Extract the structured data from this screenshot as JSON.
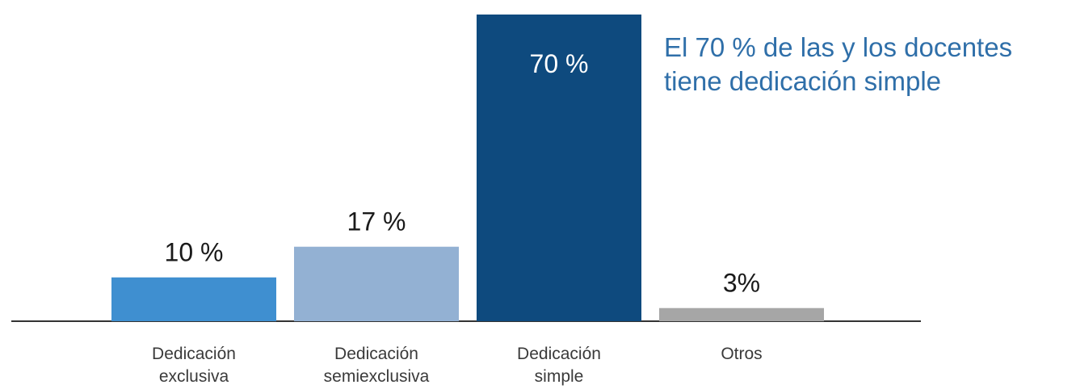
{
  "chart_data": {
    "type": "bar",
    "title": "",
    "xlabel": "",
    "ylabel": "",
    "ylim": [
      0,
      70
    ],
    "grid": false,
    "categories": [
      "Dedicación\nexclusiva",
      "Dedicación\nsemiexclusiva",
      "Dedicación\nsimple",
      "Otros"
    ],
    "values": [
      10,
      17,
      70,
      3
    ],
    "value_labels": [
      "10 %",
      "17 %",
      "70 %",
      "3%"
    ],
    "colors": [
      "#3f8fd0",
      "#93b1d3",
      "#0e4a7e",
      "#a6a6a6"
    ],
    "label_colors": [
      "#1a1a1a",
      "#1a1a1a",
      "#ffffff",
      "#1a1a1a"
    ],
    "annotation": "El 70 % de las y los docentes\ntiene dedicación simple",
    "annotation_color": "#2f6fa9"
  }
}
